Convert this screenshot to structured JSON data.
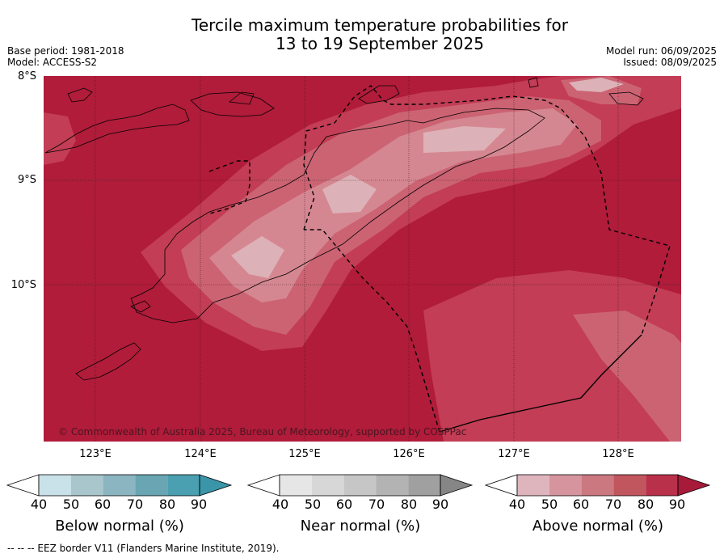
{
  "title": {
    "line1": "Tercile maximum temperature probabilities for",
    "line2": "13 to 19 September 2025"
  },
  "meta_left": {
    "base_period": "Base period: 1981-2018",
    "model": "Model: ACCESS-S2"
  },
  "meta_right": {
    "model_run": "Model run: 06/09/2025",
    "issued": "Issued: 08/09/2025"
  },
  "map": {
    "lat_labels": [
      "8°S",
      "9°S",
      "10°S"
    ],
    "lon_labels": [
      "123°E",
      "124°E",
      "125°E",
      "126°E",
      "127°E",
      "128°E"
    ],
    "copyright": "© Commonwealth of Australia 2025, Bureau of Meteorology, supported by COSPPac",
    "colors": {
      "above_90": "#b01c3a",
      "above_80": "#c23d55",
      "above_70": "#cb6373",
      "above_60": "#d58791",
      "above_50": "#ddb1b8",
      "coast": "#000000"
    }
  },
  "colorbars": [
    {
      "label": "Below normal (%)",
      "ticks": [
        "40",
        "50",
        "60",
        "70",
        "80",
        "90"
      ],
      "colors": [
        "#c9e1e8",
        "#a8c6cc",
        "#8bb6c1",
        "#69a5b2",
        "#4a9fb0",
        "#3a95a8"
      ]
    },
    {
      "label": "Near normal (%)",
      "ticks": [
        "40",
        "50",
        "60",
        "70",
        "80",
        "90"
      ],
      "colors": [
        "#e6e6e6",
        "#d7d7d7",
        "#c6c6c6",
        "#b3b3b3",
        "#a0a0a0",
        "#868686"
      ]
    },
    {
      "label": "Above normal (%)",
      "ticks": [
        "40",
        "50",
        "60",
        "70",
        "80",
        "90"
      ],
      "colors": [
        "#dfb5bd",
        "#d6959e",
        "#cb7880",
        "#c2565f",
        "#b9304a",
        "#a81a39"
      ]
    }
  ],
  "footer": "--  --  -- EEZ border V11 (Flanders Marine Institute, 2019)."
}
